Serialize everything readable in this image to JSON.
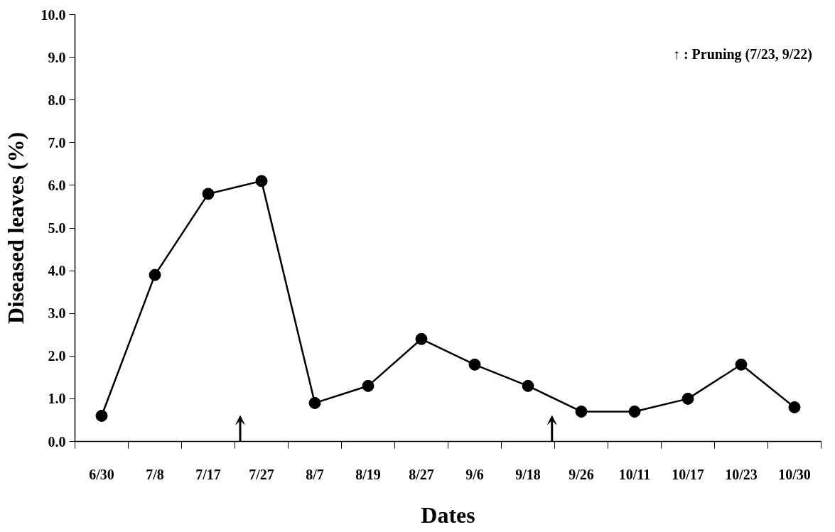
{
  "chart_data": {
    "type": "line",
    "xlabel": "Dates",
    "ylabel": "Diseased leaves (%)",
    "categories": [
      "6/30",
      "7/8",
      "7/17",
      "7/27",
      "8/7",
      "8/19",
      "8/27",
      "9/6",
      "9/18",
      "9/26",
      "10/11",
      "10/17",
      "10/23",
      "10/30"
    ],
    "series": [
      {
        "color": "#000000",
        "values": [
          0.6,
          3.9,
          5.8,
          6.1,
          0.9,
          1.3,
          2.4,
          1.8,
          1.3,
          0.7,
          0.7,
          1.0,
          1.8,
          0.8
        ]
      }
    ],
    "ylim": [
      0,
      10
    ],
    "yticks": [
      {
        "value": 0,
        "label": "0.0"
      },
      {
        "value": 1,
        "label": "1.0"
      },
      {
        "value": 2,
        "label": "2.0"
      },
      {
        "value": 3,
        "label": "3.0"
      },
      {
        "value": 4,
        "label": "4.0"
      },
      {
        "value": 5,
        "label": "5.0"
      },
      {
        "value": 6,
        "label": "6.0"
      },
      {
        "value": 7,
        "label": "7.0"
      },
      {
        "value": 8,
        "label": "8.0"
      },
      {
        "value": 9,
        "label": "9.0"
      },
      {
        "value": 10,
        "label": "10.0"
      }
    ],
    "marker": "circle",
    "line_style": "solid",
    "grid": false,
    "annotations": [
      "↑ : Pruning  (7/23, 9/22)"
    ]
  }
}
